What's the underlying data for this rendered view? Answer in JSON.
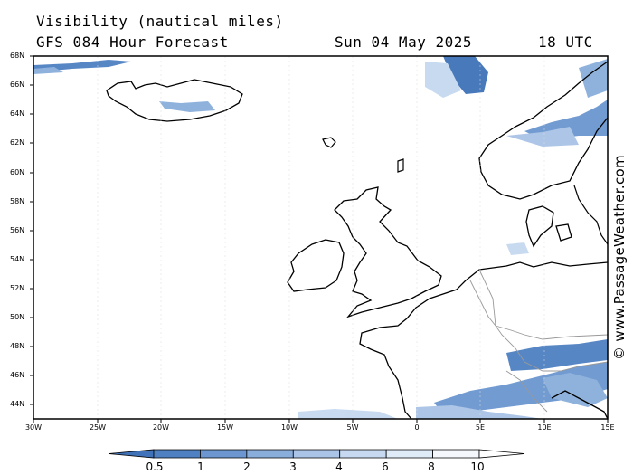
{
  "header": {
    "title_line1": "Visibility (nautical miles)",
    "title_line2": "GFS 084 Hour Forecast",
    "date": "Sun 04 May 2025",
    "time": "18 UTC"
  },
  "map": {
    "lat_range": [
      43,
      68
    ],
    "lon_range": [
      -30,
      15
    ],
    "lat_labels": [
      "68N",
      "66N",
      "64N",
      "62N",
      "60N",
      "58N",
      "56N",
      "54N",
      "52N",
      "50N",
      "48N",
      "46N",
      "44N"
    ],
    "lon_labels": [
      "30W",
      "25W",
      "20W",
      "15W",
      "10W",
      "5W",
      "0",
      "5E",
      "10E",
      "15E"
    ]
  },
  "colorbar": {
    "labels": [
      "0.5",
      "1",
      "2",
      "3",
      "4",
      "6",
      "8",
      "10"
    ],
    "colors": [
      "#3f72b8",
      "#4f80c2",
      "#6b96cf",
      "#8aaedb",
      "#a9c4e6",
      "#c6d9f0",
      "#e0ebf8",
      "#f4f8fd",
      "#ffffff"
    ]
  },
  "credit": "© www.PassageWeather.com"
}
